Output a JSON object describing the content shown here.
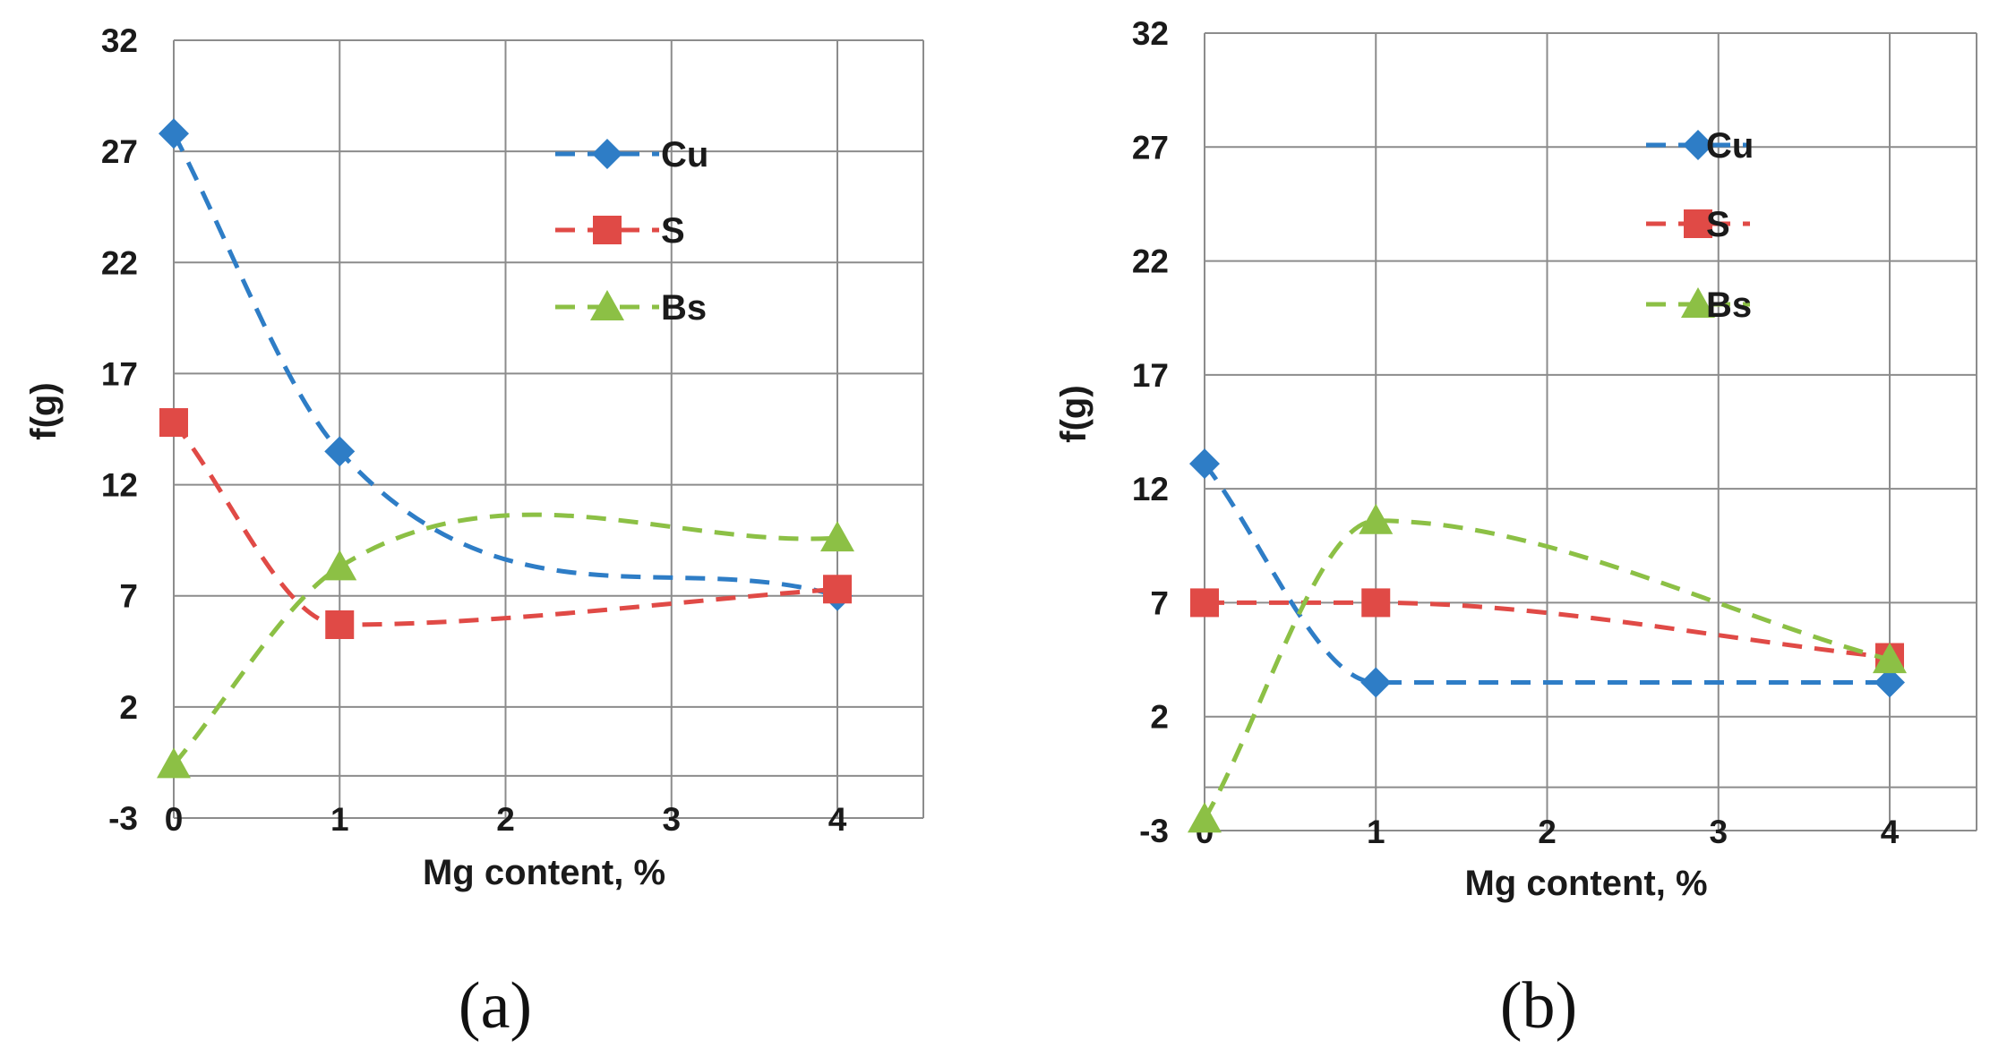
{
  "chart_data": [
    {
      "type": "line",
      "panel_label": "(a)",
      "xlabel": "Mg content, %",
      "ylabel": "f(g)",
      "x_ticks": [
        0,
        1,
        2,
        3,
        4
      ],
      "y_ticks": [
        -3,
        2,
        7,
        12,
        17,
        22,
        27,
        32
      ],
      "ylim": [
        -3,
        32
      ],
      "xlim": [
        0,
        4.5
      ],
      "grid": true,
      "smooth": true,
      "legend_position": "top-right",
      "series": [
        {
          "name": "Cu",
          "color": "#2e7dc6",
          "marker": "diamond",
          "x": [
            0,
            1,
            4
          ],
          "y": [
            27.8,
            13.5,
            7.0
          ]
        },
        {
          "name": "S",
          "color": "#e04a46",
          "marker": "square",
          "x": [
            0,
            1,
            4
          ],
          "y": [
            14.8,
            5.7,
            7.3
          ]
        },
        {
          "name": "Bs",
          "color": "#8cc045",
          "marker": "triangle",
          "x": [
            0,
            1,
            4
          ],
          "y": [
            -0.6,
            8.3,
            9.6
          ]
        }
      ]
    },
    {
      "type": "line",
      "panel_label": "(b)",
      "xlabel": "Mg content, %",
      "ylabel": "f(g)",
      "x_ticks": [
        0,
        1,
        2,
        3,
        4
      ],
      "y_ticks": [
        -3,
        2,
        7,
        12,
        17,
        22,
        27,
        32
      ],
      "ylim": [
        -3,
        32
      ],
      "xlim": [
        0,
        4.5
      ],
      "grid": true,
      "smooth": true,
      "legend_position": "top-right",
      "series": [
        {
          "name": "Cu",
          "color": "#2e7dc6",
          "marker": "diamond",
          "x": [
            0,
            1,
            4
          ],
          "y": [
            13.1,
            3.5,
            3.5
          ]
        },
        {
          "name": "S",
          "color": "#e04a46",
          "marker": "square",
          "x": [
            0,
            1,
            4
          ],
          "y": [
            7.0,
            7.0,
            4.6
          ]
        },
        {
          "name": "Bs",
          "color": "#8cc045",
          "marker": "triangle",
          "x": [
            0,
            1,
            4
          ],
          "y": [
            -2.5,
            10.6,
            4.5
          ]
        }
      ]
    }
  ]
}
